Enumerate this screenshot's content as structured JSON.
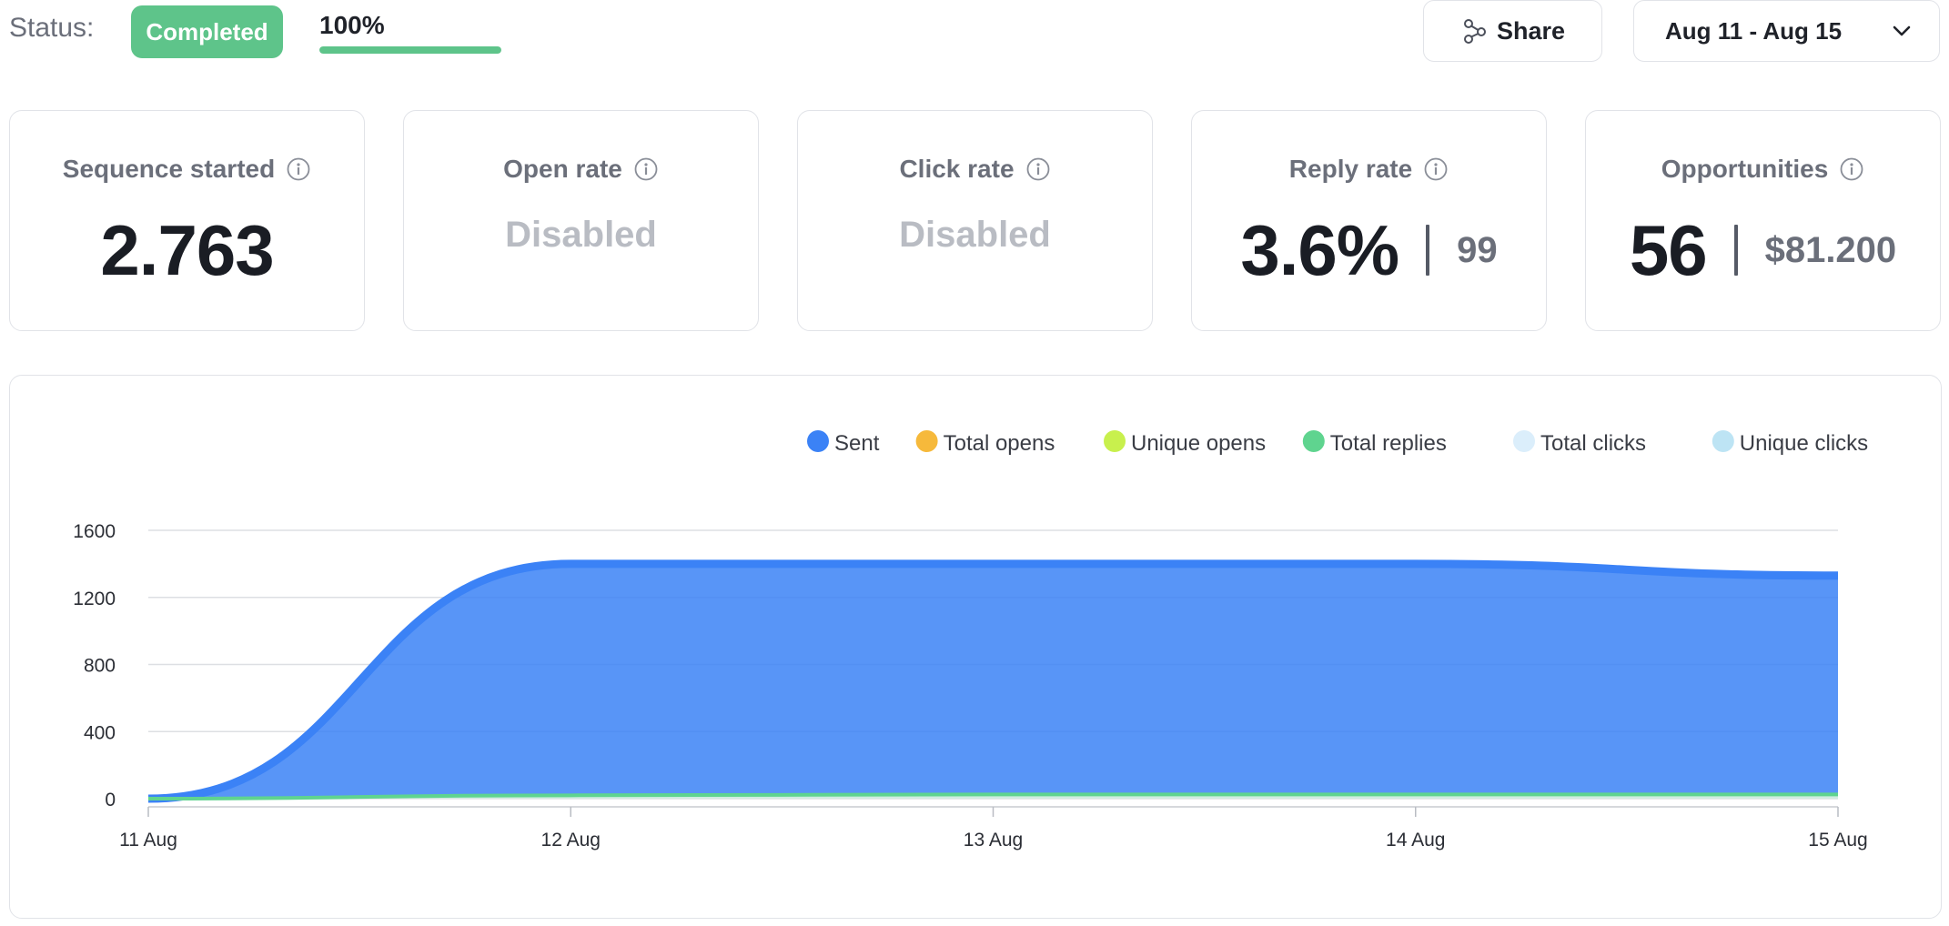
{
  "status": {
    "label": "Status:",
    "badge": "Completed",
    "progress_text": "100%",
    "progress_fraction": 1.0
  },
  "toolbar": {
    "share_label": "Share",
    "date_range": "Aug 11 - Aug 15"
  },
  "cards": [
    {
      "title": "Sequence started",
      "value": "2.763"
    },
    {
      "title": "Open rate",
      "value": "Disabled"
    },
    {
      "title": "Click rate",
      "value": "Disabled"
    },
    {
      "title": "Reply rate",
      "value": "3.6%",
      "secondary": "99"
    },
    {
      "title": "Opportunities",
      "value": "56",
      "secondary": "$81.200"
    }
  ],
  "colors": {
    "accent_green": "#5ec48a",
    "sent": "#3b82f6",
    "total_opens": "#f6b93b",
    "unique_opens": "#c8f04d",
    "total_replies": "#5fd48f",
    "total_clicks": "#dbeefb",
    "unique_clicks": "#bde4f4"
  },
  "chart_data": {
    "type": "area",
    "x": [
      "11 Aug",
      "12 Aug",
      "13 Aug",
      "14 Aug",
      "15 Aug"
    ],
    "ylim": [
      0,
      1600
    ],
    "yticks": [
      "0",
      "400",
      "800",
      "1200",
      "1600"
    ],
    "grid": true,
    "legend_position": "top-right",
    "series": [
      {
        "name": "Sent",
        "color": "#3b82f6",
        "values": [
          0,
          1400,
          1400,
          1400,
          1330
        ]
      },
      {
        "name": "Total opens",
        "color": "#f6b93b",
        "values": [
          0,
          0,
          0,
          0,
          0
        ]
      },
      {
        "name": "Unique opens",
        "color": "#c8f04d",
        "values": [
          0,
          0,
          0,
          0,
          0
        ]
      },
      {
        "name": "Total replies",
        "color": "#5fd48f",
        "values": [
          0,
          20,
          25,
          25,
          25
        ]
      },
      {
        "name": "Total clicks",
        "color": "#dbeefb",
        "values": [
          0,
          0,
          0,
          0,
          0
        ]
      },
      {
        "name": "Unique clicks",
        "color": "#bde4f4",
        "values": [
          0,
          0,
          0,
          0,
          0
        ]
      }
    ]
  }
}
